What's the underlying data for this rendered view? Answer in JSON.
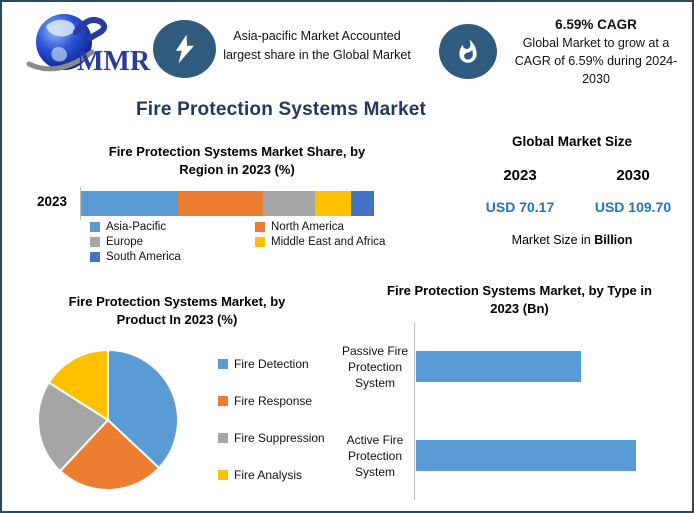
{
  "logo": {
    "text": "MMR"
  },
  "banners": [
    {
      "icon": "lightning-icon",
      "text": "Asia-pacific Market Accounted largest share in the Global Market"
    },
    {
      "icon": "flame-icon",
      "title": "6.59% CAGR",
      "text": "Global Market to grow at a CAGR of 6.59% during 2024-2030"
    }
  ],
  "page_title": "Fire Protection Systems Market",
  "market_size": {
    "title": "Global Market Size",
    "columns": [
      {
        "year": "2023",
        "value": "USD 70.17"
      },
      {
        "year": "2030",
        "value": "USD 109.70"
      }
    ],
    "note_prefix": "Market Size in ",
    "note_bold": "Billion",
    "value_color": "#2273C3"
  },
  "colors": {
    "title_navy": "#1F3864",
    "icon_circle_bg": "#2E5B7E",
    "frame_border": "#274A60",
    "axis_gray": "#BFBFBF"
  },
  "chart_data": [
    {
      "type": "bar",
      "subtype": "stacked-horizontal",
      "title": "Fire Protection Systems Market Share, by Region in 2023 (%)",
      "categories": [
        "2023"
      ],
      "series": [
        {
          "name": "Asia-Pacific",
          "color": "#5B9BD5",
          "values": [
            33
          ]
        },
        {
          "name": "North America",
          "color": "#ED7D31",
          "values": [
            29
          ]
        },
        {
          "name": "Europe",
          "color": "#A5A5A5",
          "values": [
            18
          ]
        },
        {
          "name": "Middle East and Africa",
          "color": "#FFC000",
          "values": [
            12
          ]
        },
        {
          "name": "South America",
          "color": "#4472C4",
          "values": [
            8
          ]
        }
      ],
      "xlim": [
        0,
        100
      ],
      "legend_position": "bottom",
      "grid": false
    },
    {
      "type": "pie",
      "title": "Fire Protection Systems Market, by Product In 2023 (%)",
      "labels": [
        "Fire Detection",
        "Fire Response",
        "Fire Suppression",
        "Fire Analysis"
      ],
      "values": [
        37,
        25,
        22,
        16
      ],
      "colors": [
        "#5B9BD5",
        "#ED7D31",
        "#A5A5A5",
        "#FFC000"
      ],
      "start_angle_deg": 0,
      "direction": "clockwise",
      "legend_position": "right"
    },
    {
      "type": "bar",
      "subtype": "horizontal",
      "title": "Fire Protection Systems Market, by Type in 2023 (Bn)",
      "categories": [
        "Passive Fire Protection System",
        "Active Fire Protection System"
      ],
      "values": [
        30,
        40
      ],
      "xlim": [
        0,
        50
      ],
      "bar_color": "#5B9BD5",
      "grid": false
    }
  ]
}
